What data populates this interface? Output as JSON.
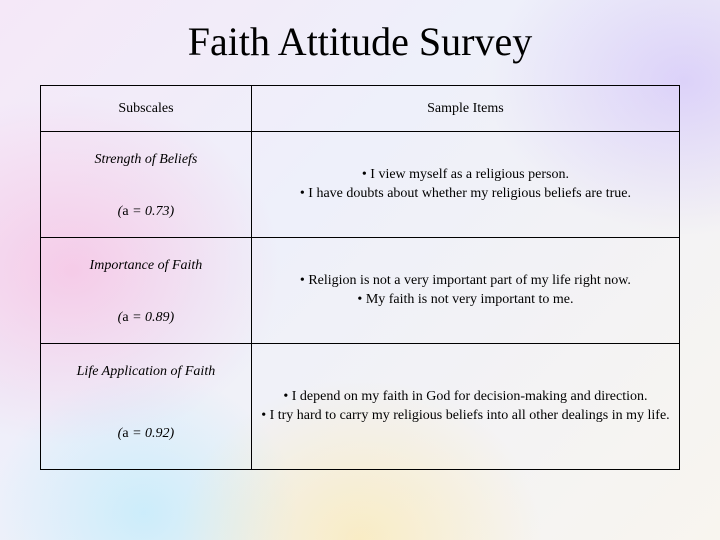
{
  "title": "Faith Attitude Survey",
  "table": {
    "headers": {
      "subscales": "Subscales",
      "sample_items": "Sample Items"
    },
    "rows": [
      {
        "name": "Strength of Beliefs",
        "alpha_text": "(a = 0.73)",
        "items": [
          "I view myself as a religious person.",
          "I have doubts about whether my religious beliefs are true."
        ]
      },
      {
        "name": "Importance of Faith",
        "alpha_text": "(a = 0.89)",
        "items": [
          "Religion is not a very important part of my life right now.",
          "My faith is not very important to me."
        ]
      },
      {
        "name": "Life Application of Faith",
        "alpha_text": "(a = 0.92)",
        "items": [
          "I depend on my faith in God for decision-making and direction.",
          "I try hard to carry my religious beliefs into all other dealings in my life."
        ]
      }
    ]
  },
  "style": {
    "title_fontsize": 40,
    "cell_fontsize": 14,
    "border_color": "#000000",
    "text_color": "#000000",
    "font_family": "Times New Roman",
    "col_widths": [
      "33%",
      "67%"
    ],
    "background": {
      "spots": [
        {
          "pos": "10% 50%",
          "color": "rgba(255,140,200,0.35)",
          "size": "300px 250px"
        },
        {
          "pos": "95% 15%",
          "color": "rgba(180,150,255,0.35)",
          "size": "280px 220px"
        },
        {
          "pos": "50% 100%",
          "color": "rgba(255,230,150,0.5)",
          "size": "260px 230px"
        },
        {
          "pos": "20% 95%",
          "color": "rgba(150,230,255,0.4)",
          "size": "220px 200px"
        }
      ],
      "base_gradient": [
        "#f5e8f8",
        "#eef0fa",
        "#f8f5ef"
      ]
    }
  }
}
